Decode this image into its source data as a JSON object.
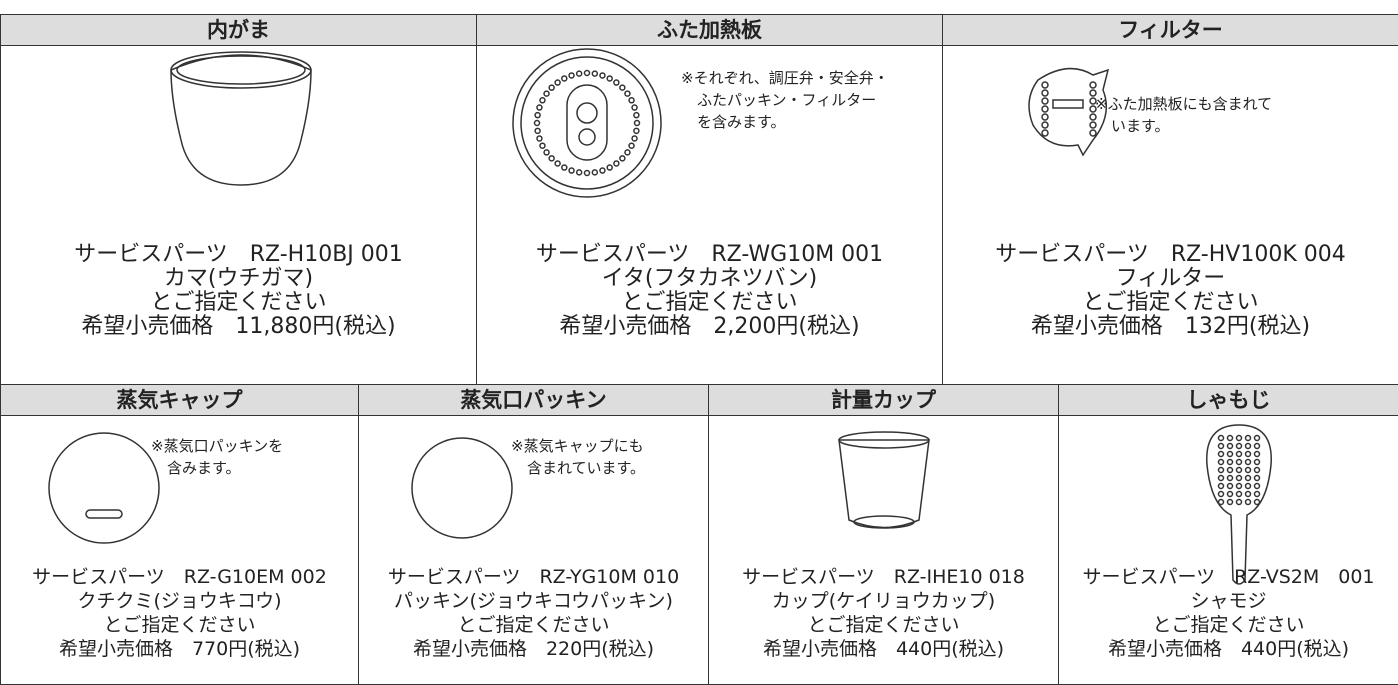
{
  "rows": [
    {
      "cells": [
        {
          "header": "内がま",
          "lines": [
            "サービスパーツ　RZ-H10BJ 001",
            "カマ(ウチガマ)",
            "とご指定ください",
            "希望小売価格　11,880円(税込)"
          ]
        },
        {
          "header": "ふた加熱板",
          "note": [
            "※それぞれ、調圧弁・安全弁・",
            "ふたパッキン・フィルター",
            "を含みます。"
          ],
          "lines": [
            "サービスパーツ　RZ-WG10M 001",
            "イタ(フタカネツバン)",
            "とご指定ください",
            "希望小売価格　2,200円(税込)"
          ]
        },
        {
          "header": "フィルター",
          "note": [
            "※ふた加熱板にも含まれて",
            "います。"
          ],
          "lines": [
            "サービスパーツ　RZ-HV100K 004",
            "フィルター",
            "とご指定ください",
            "希望小売価格　132円(税込)"
          ]
        }
      ]
    },
    {
      "cells": [
        {
          "header": "蒸気キャップ",
          "note": [
            "※蒸気口パッキンを",
            "含みます。"
          ],
          "lines": [
            "サービスパーツ　RZ-G10EM 002",
            "クチクミ(ジョウキコウ)",
            "とご指定ください",
            "希望小売価格　770円(税込)"
          ]
        },
        {
          "header": "蒸気口パッキン",
          "note": [
            "※蒸気キャップにも",
            "含まれています。"
          ],
          "lines": [
            "サービスパーツ　RZ-YG10M 010",
            "パッキン(ジョウキコウパッキン)",
            "とご指定ください",
            "希望小売価格　220円(税込)"
          ]
        },
        {
          "header": "計量カップ",
          "lines": [
            "サービスパーツ　RZ-IHE10 018",
            "カップ(ケイリョウカップ)",
            "とご指定ください",
            "希望小売価格　440円(税込)"
          ]
        },
        {
          "header": "しゃもじ",
          "lines": [
            "サービスパーツ　RZ-VS2M　001",
            "シャモジ",
            "とご指定ください",
            "希望小売価格　440円(税込)"
          ]
        }
      ]
    }
  ]
}
